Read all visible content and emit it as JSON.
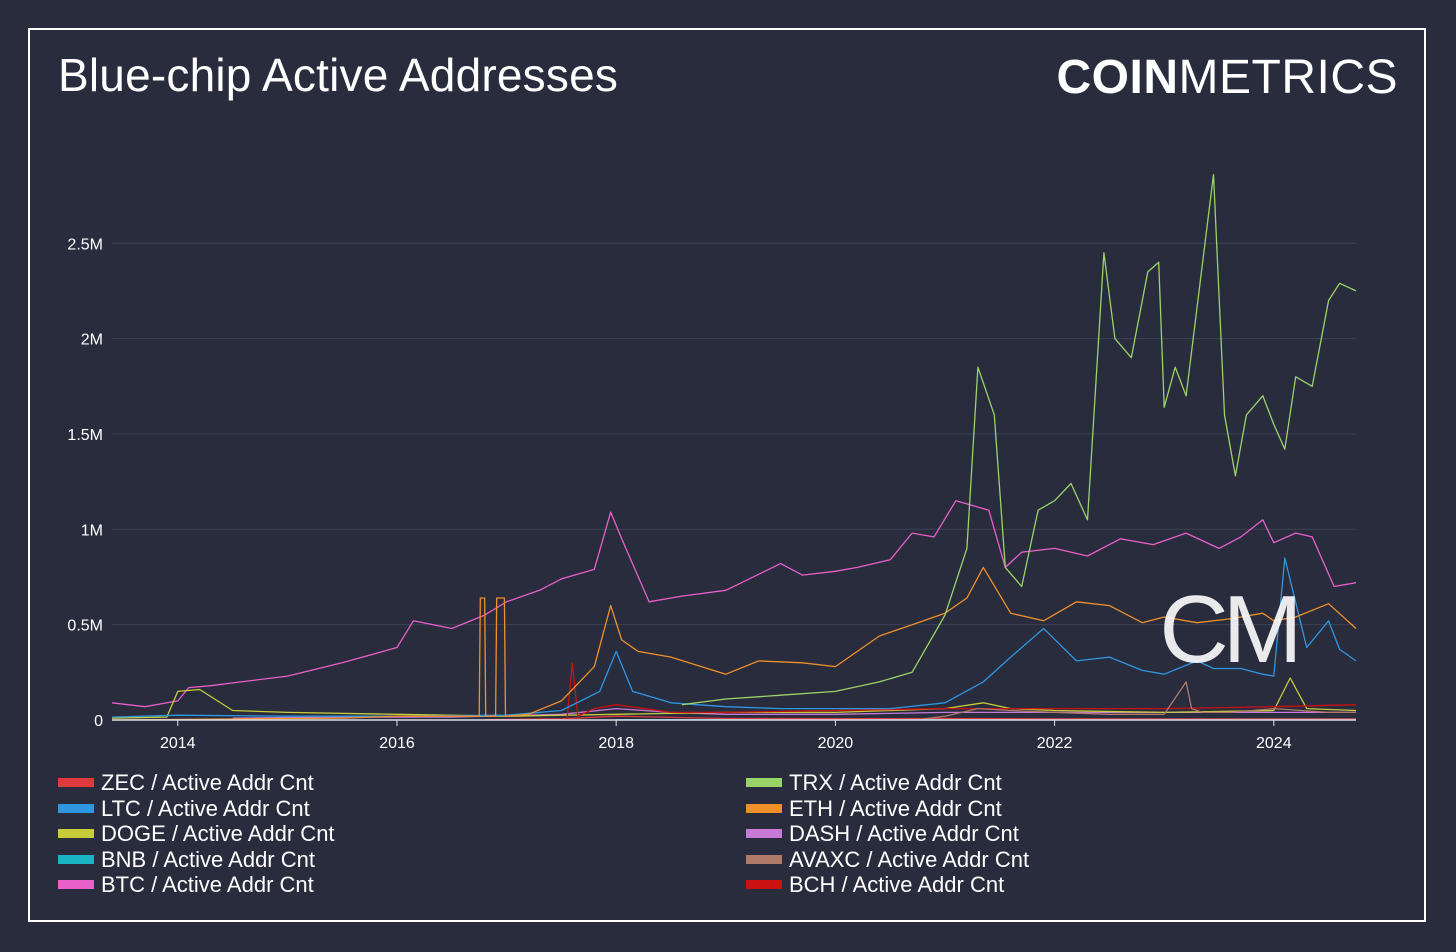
{
  "header": {
    "title": "Blue-chip Active Addresses",
    "brand_bold": "COIN",
    "brand_light": "METRICS",
    "watermark": "CM"
  },
  "chart_data": {
    "type": "line",
    "title": "Blue-chip Active Addresses",
    "xlabel": "",
    "ylabel": "",
    "xlim": [
      2013.4,
      2024.75
    ],
    "ylim": [
      0,
      2900000
    ],
    "x_ticks": [
      "2014",
      "2016",
      "2018",
      "2020",
      "2022",
      "2024"
    ],
    "y_ticks": [
      "0",
      "0.5M",
      "1M",
      "1.5M",
      "2M",
      "2.5M"
    ],
    "grid": "horizontal",
    "legend_position": "bottom",
    "series": [
      {
        "name": "ZEC / Active Addr Cnt",
        "color": "#e03a3e",
        "x": [
          2016.8,
          2017.5,
          2018.0,
          2019.0,
          2020.0,
          2021.0,
          2022.0,
          2023.0,
          2024.0,
          2024.75
        ],
        "y": [
          2000,
          6000,
          20000,
          8000,
          7000,
          8000,
          6000,
          5000,
          5000,
          5000
        ]
      },
      {
        "name": "LTC / Active Addr Cnt",
        "color": "#2f96e0",
        "x": [
          2013.4,
          2014.0,
          2015.0,
          2016.0,
          2017.0,
          2017.5,
          2017.85,
          2018.0,
          2018.15,
          2018.5,
          2019.0,
          2019.5,
          2020.0,
          2020.5,
          2021.0,
          2021.35,
          2021.6,
          2021.9,
          2022.2,
          2022.5,
          2022.8,
          2023.0,
          2023.3,
          2023.45,
          2023.7,
          2023.9,
          2024.0,
          2024.1,
          2024.3,
          2024.5,
          2024.6,
          2024.75
        ],
        "y": [
          15000,
          25000,
          20000,
          20000,
          25000,
          50000,
          150000,
          360000,
          150000,
          90000,
          70000,
          60000,
          60000,
          60000,
          90000,
          200000,
          330000,
          480000,
          310000,
          330000,
          260000,
          240000,
          310000,
          270000,
          270000,
          240000,
          230000,
          850000,
          380000,
          520000,
          370000,
          310000
        ]
      },
      {
        "name": "DOGE / Active Addr Cnt",
        "color": "#c8cc3a",
        "x": [
          2013.4,
          2013.9,
          2014.0,
          2014.2,
          2014.5,
          2015.0,
          2016.0,
          2017.0,
          2018.0,
          2019.0,
          2020.0,
          2021.0,
          2021.35,
          2021.6,
          2022.0,
          2023.0,
          2024.0,
          2024.15,
          2024.3,
          2024.75
        ],
        "y": [
          10000,
          15000,
          150000,
          160000,
          50000,
          40000,
          30000,
          20000,
          30000,
          40000,
          40000,
          60000,
          90000,
          60000,
          50000,
          40000,
          50000,
          220000,
          60000,
          50000
        ]
      },
      {
        "name": "BNB / Active Addr Cnt",
        "color": "#1ab5c4",
        "x": [
          2018.0,
          2019.0,
          2020.0,
          2021.0,
          2022.0,
          2023.0,
          2024.0,
          2024.75
        ],
        "y": [
          1000,
          2000,
          3000,
          5000,
          5000,
          5000,
          6000,
          6000
        ]
      },
      {
        "name": "BTC / Active Addr Cnt",
        "color": "#e860c8",
        "x": [
          2013.4,
          2013.7,
          2014.0,
          2014.1,
          2014.3,
          2015.0,
          2015.5,
          2016.0,
          2016.15,
          2016.5,
          2016.8,
          2017.0,
          2017.3,
          2017.5,
          2017.8,
          2017.95,
          2018.05,
          2018.3,
          2018.6,
          2019.0,
          2019.5,
          2019.7,
          2020.0,
          2020.2,
          2020.5,
          2020.7,
          2020.9,
          2021.1,
          2021.4,
          2021.55,
          2021.7,
          2022.0,
          2022.3,
          2022.6,
          2022.9,
          2023.2,
          2023.5,
          2023.7,
          2023.9,
          2024.0,
          2024.2,
          2024.35,
          2024.55,
          2024.75
        ],
        "y": [
          90000,
          70000,
          100000,
          170000,
          180000,
          230000,
          300000,
          380000,
          520000,
          480000,
          550000,
          620000,
          680000,
          740000,
          790000,
          1090000,
          950000,
          620000,
          650000,
          680000,
          820000,
          760000,
          780000,
          800000,
          840000,
          980000,
          960000,
          1150000,
          1100000,
          800000,
          880000,
          900000,
          860000,
          950000,
          920000,
          980000,
          900000,
          960000,
          1050000,
          930000,
          980000,
          960000,
          700000,
          720000
        ]
      },
      {
        "name": "TRX / Active Addr Cnt",
        "color": "#9ad468",
        "x": [
          2018.6,
          2019.0,
          2019.5,
          2020.0,
          2020.4,
          2020.7,
          2021.0,
          2021.2,
          2021.3,
          2021.45,
          2021.55,
          2021.7,
          2021.85,
          2022.0,
          2022.15,
          2022.3,
          2022.45,
          2022.55,
          2022.7,
          2022.85,
          2022.95,
          2023.0,
          2023.1,
          2023.2,
          2023.45,
          2023.55,
          2023.65,
          2023.75,
          2023.9,
          2024.0,
          2024.1,
          2024.2,
          2024.35,
          2024.5,
          2024.6,
          2024.75
        ],
        "y": [
          80000,
          110000,
          130000,
          150000,
          200000,
          250000,
          550000,
          900000,
          1850000,
          1600000,
          800000,
          700000,
          1100000,
          1150000,
          1240000,
          1050000,
          2450000,
          2000000,
          1900000,
          2350000,
          2400000,
          1640000,
          1850000,
          1700000,
          2860000,
          1600000,
          1280000,
          1600000,
          1700000,
          1550000,
          1420000,
          1800000,
          1750000,
          2200000,
          2290000,
          2250000
        ]
      },
      {
        "name": "ETH / Active Addr Cnt",
        "color": "#f0902a",
        "x": [
          2013.4,
          2015.5,
          2016.0,
          2016.75,
          2016.76,
          2016.8,
          2016.81,
          2016.9,
          2016.91,
          2016.98,
          2016.99,
          2017.2,
          2017.5,
          2017.8,
          2017.95,
          2018.05,
          2018.2,
          2018.5,
          2019.0,
          2019.3,
          2019.7,
          2020.0,
          2020.4,
          2020.7,
          2021.0,
          2021.2,
          2021.35,
          2021.6,
          2021.9,
          2022.2,
          2022.5,
          2022.8,
          2023.0,
          2023.3,
          2023.6,
          2023.9,
          2024.0,
          2024.2,
          2024.5,
          2024.75
        ],
        "y": [
          0,
          10000,
          20000,
          20000,
          640000,
          640000,
          20000,
          20000,
          640000,
          640000,
          20000,
          30000,
          100000,
          280000,
          600000,
          420000,
          360000,
          330000,
          240000,
          310000,
          300000,
          280000,
          440000,
          500000,
          560000,
          640000,
          800000,
          560000,
          520000,
          620000,
          600000,
          510000,
          540000,
          510000,
          530000,
          560000,
          520000,
          540000,
          610000,
          480000
        ]
      },
      {
        "name": "DASH / Active Addr Cnt",
        "color": "#c77ad6",
        "x": [
          2014.5,
          2015.5,
          2016.5,
          2017.5,
          2018.0,
          2018.5,
          2019.0,
          2020.0,
          2021.0,
          2022.0,
          2023.0,
          2024.0,
          2024.75
        ],
        "y": [
          10000,
          15000,
          15000,
          30000,
          60000,
          40000,
          30000,
          30000,
          40000,
          40000,
          40000,
          40000,
          40000
        ]
      },
      {
        "name": "AVAXC / Active Addr Cnt",
        "color": "#b07a6a",
        "x": [
          2020.8,
          2021.0,
          2021.3,
          2021.6,
          2022.0,
          2022.5,
          2023.0,
          2023.2,
          2023.25,
          2023.35,
          2023.6,
          2024.0,
          2024.5,
          2024.75
        ],
        "y": [
          5000,
          20000,
          60000,
          50000,
          40000,
          30000,
          30000,
          200000,
          60000,
          40000,
          40000,
          60000,
          40000,
          40000
        ]
      },
      {
        "name": "BCH / Active Addr Cnt",
        "color": "#cc1111",
        "x": [
          2017.55,
          2017.6,
          2017.65,
          2017.8,
          2018.0,
          2018.5,
          2019.0,
          2020.0,
          2021.0,
          2022.0,
          2023.0,
          2024.0,
          2024.75
        ],
        "y": [
          0,
          300000,
          20000,
          60000,
          80000,
          40000,
          40000,
          50000,
          60000,
          60000,
          60000,
          70000,
          80000
        ]
      }
    ]
  }
}
